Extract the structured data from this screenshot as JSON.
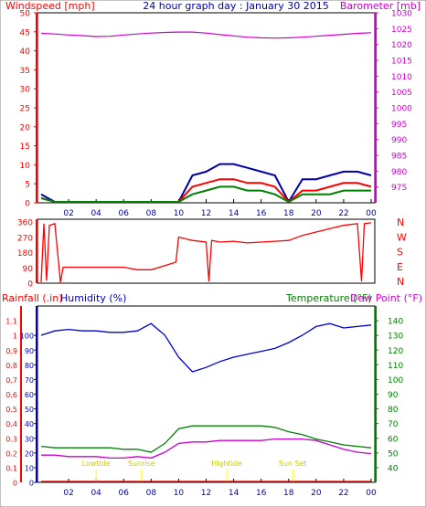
{
  "header": {
    "left_label": "Windspeed [mph]",
    "center_label": "24 hour graph day : January 30 2015",
    "right_label": "Barometer [mb]"
  },
  "lower_header": {
    "rain_label": "Rainfall (.in)",
    "humidity_label": "Humidity (%)",
    "temp_label": "Temperature (°F)",
    "dew_label": "Dew Point (°F)"
  },
  "colors": {
    "wind": "#ff0000",
    "gust": "#0000aa",
    "avg": "#008000",
    "baro": "#cc00cc",
    "humidity": "#0000cc",
    "temperature": "#008000",
    "dewpoint": "#cc00cc",
    "rain": "#ff0000",
    "tide": "#ffff00",
    "axis": "#ff0000"
  },
  "chart_data": [
    {
      "type": "line",
      "name": "wind-baro",
      "x_hours": [
        0,
        1,
        2,
        3,
        4,
        5,
        6,
        7,
        8,
        9,
        10,
        11,
        12,
        13,
        14,
        15,
        16,
        17,
        18,
        19,
        20,
        21,
        22,
        23,
        24
      ],
      "left_axis": {
        "label": "Windspeed [mph]",
        "ylim": [
          0,
          50
        ],
        "ticks": [
          0,
          5,
          10,
          15,
          20,
          25,
          30,
          35,
          40,
          45,
          50
        ]
      },
      "right_axis": {
        "label": "Barometer [mb]",
        "ylim": [
          970,
          1030
        ],
        "ticks": [
          975,
          980,
          985,
          990,
          995,
          1000,
          1005,
          1010,
          1015,
          1020,
          1025,
          1030
        ]
      },
      "x_ticks": [
        "02",
        "04",
        "06",
        "08",
        "10",
        "12",
        "14",
        "16",
        "18",
        "20",
        "22",
        "00"
      ],
      "series": [
        {
          "key": "gust",
          "values": [
            2,
            0,
            0,
            0,
            0,
            0,
            0,
            0,
            0,
            0,
            0,
            7,
            8,
            10,
            10,
            9,
            8,
            7,
            0,
            6,
            6,
            7,
            8,
            8,
            7
          ]
        },
        {
          "key": "wind",
          "values": [
            1,
            0,
            0,
            0,
            0,
            0,
            0,
            0,
            0,
            0,
            0,
            4,
            5,
            6,
            6,
            5,
            5,
            4,
            0,
            3,
            3,
            4,
            5,
            5,
            4
          ]
        },
        {
          "key": "avg",
          "values": [
            1,
            0,
            0,
            0,
            0,
            0,
            0,
            0,
            0,
            0,
            0,
            2,
            3,
            4,
            4,
            3,
            3,
            2,
            0,
            2,
            2,
            2,
            3,
            3,
            3
          ]
        },
        {
          "key": "baro",
          "values": [
            1023.5,
            1023.3,
            1023,
            1022.8,
            1022.5,
            1022.6,
            1023,
            1023.3,
            1023.6,
            1023.8,
            1023.9,
            1023.9,
            1023.6,
            1023.1,
            1022.7,
            1022.3,
            1022.1,
            1022,
            1022.1,
            1022.3,
            1022.6,
            1022.9,
            1023.2,
            1023.5,
            1023.7
          ]
        }
      ]
    },
    {
      "type": "line",
      "name": "wind-direction",
      "x_hours": [
        0,
        0.2,
        0.4,
        0.6,
        1,
        1.4,
        1.6,
        2,
        3,
        4,
        5,
        6,
        7,
        8,
        9,
        9.8,
        10,
        11,
        12,
        12.2,
        12.4,
        13,
        14,
        15,
        16,
        17,
        18,
        19,
        20,
        21,
        22,
        23,
        23.3,
        23.5,
        24
      ],
      "left_ticks": [
        0,
        90,
        180,
        270,
        360
      ],
      "direction_labels": [
        "N",
        "W",
        "S",
        "E",
        "N"
      ],
      "ylim": [
        0,
        360
      ],
      "series": [
        {
          "key": "wind",
          "values": [
            0,
            350,
            10,
            340,
            350,
            0,
            90,
            90,
            90,
            90,
            90,
            90,
            75,
            75,
            100,
            120,
            270,
            250,
            240,
            5,
            250,
            240,
            245,
            235,
            240,
            245,
            250,
            280,
            300,
            320,
            340,
            350,
            5,
            350,
            355
          ]
        }
      ]
    },
    {
      "type": "line",
      "name": "temp-humidity",
      "x_hours": [
        0,
        1,
        2,
        3,
        4,
        5,
        6,
        7,
        8,
        9,
        10,
        11,
        12,
        13,
        14,
        15,
        16,
        17,
        18,
        19,
        20,
        21,
        22,
        23,
        24
      ],
      "rain_axis": {
        "label": "Rainfall (.in)",
        "ylim": [
          0,
          1.2
        ],
        "ticks": [
          0,
          0.1,
          0.2,
          0.3,
          0.4,
          0.5,
          0.6,
          0.7,
          0.8,
          0.9,
          1,
          1.1
        ]
      },
      "humidity_axis": {
        "label": "Humidity (%)",
        "ylim": [
          0,
          120
        ],
        "ticks": [
          0,
          10,
          20,
          30,
          40,
          50,
          60,
          70,
          80,
          90,
          100
        ]
      },
      "temp_axis": {
        "label": "Temperature (°F)",
        "ylim": [
          30,
          150
        ],
        "ticks": [
          40,
          50,
          60,
          70,
          80,
          90,
          100,
          110,
          120,
          130,
          140
        ]
      },
      "x_ticks": [
        "02",
        "04",
        "06",
        "08",
        "10",
        "12",
        "14",
        "16",
        "18",
        "20",
        "22",
        "00"
      ],
      "tide_labels": [
        {
          "text": "Lowtide",
          "hour": 4
        },
        {
          "text": "Sunrise",
          "hour": 7.3
        },
        {
          "text": "Hightide",
          "hour": 13.5
        },
        {
          "text": "Sun Set",
          "hour": 18.3
        }
      ],
      "series": [
        {
          "key": "humidity",
          "values": [
            100,
            103,
            104,
            103,
            103,
            102,
            102,
            103,
            108,
            100,
            85,
            75,
            78,
            82,
            85,
            87,
            89,
            91,
            95,
            100,
            106,
            108,
            105,
            106,
            107
          ]
        },
        {
          "key": "temperature",
          "values": [
            54,
            53,
            53,
            53,
            53,
            53,
            52,
            52,
            50,
            56,
            66,
            68,
            68,
            68,
            68,
            68,
            68,
            67,
            64,
            62,
            59,
            57,
            55,
            54,
            53
          ]
        },
        {
          "key": "dewpoint",
          "values": [
            48,
            48,
            47,
            47,
            47,
            46,
            46,
            47,
            46,
            50,
            56,
            57,
            57,
            58,
            58,
            58,
            58,
            59,
            59,
            59,
            58,
            55,
            52,
            50,
            49
          ]
        },
        {
          "key": "rain",
          "values": [
            0,
            0,
            0,
            0,
            0,
            0,
            0,
            0,
            0,
            0,
            0,
            0,
            0,
            0,
            0,
            0,
            0,
            0,
            0,
            0,
            0,
            0,
            0,
            0,
            0
          ]
        }
      ]
    }
  ]
}
